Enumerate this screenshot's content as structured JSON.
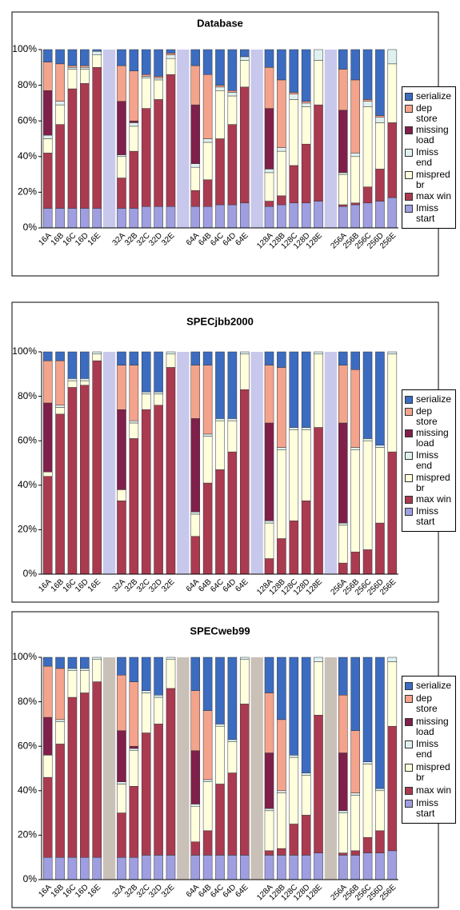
{
  "chart_data": [
    {
      "type": "bar",
      "stacked": true,
      "title": "Database",
      "gap_color": "#c8c8ec",
      "categories": [
        "16A",
        "16B",
        "16C",
        "16D",
        "16E",
        null,
        "32A",
        "32B",
        "32C",
        "32D",
        "32E",
        null,
        "64A",
        "64B",
        "64C",
        "64D",
        "64E",
        null,
        "128A",
        "128B",
        "128C",
        "128D",
        "128E",
        null,
        "256A",
        "256B",
        "256C",
        "256D",
        "256E"
      ],
      "ylim": [
        0,
        100
      ],
      "yticks": [
        {
          "value": 0,
          "label": "0%"
        },
        {
          "value": 20,
          "label": "20%"
        },
        {
          "value": 40,
          "label": "40%"
        },
        {
          "value": 60,
          "label": "60%"
        },
        {
          "value": 80,
          "label": "80%"
        },
        {
          "value": 100,
          "label": "100%"
        }
      ],
      "series": [
        {
          "name": "Imiss start",
          "color": "#9e9ee0",
          "values": [
            11,
            11,
            11,
            11,
            11,
            null,
            11,
            11,
            12,
            12,
            12,
            null,
            12,
            12,
            13,
            13,
            14,
            null,
            12,
            13,
            14,
            14,
            15,
            null,
            12,
            13,
            14,
            15,
            17
          ]
        },
        {
          "name": "max win",
          "color": "#aa3a50",
          "values": [
            31,
            47,
            67,
            70,
            79,
            null,
            17,
            32,
            55,
            60,
            74,
            null,
            9,
            15,
            37,
            45,
            65,
            null,
            3,
            5,
            21,
            33,
            54,
            null,
            1,
            1,
            9,
            18,
            42
          ]
        },
        {
          "name": "mispred br",
          "color": "#ffffdd",
          "values": [
            8,
            11,
            11,
            8,
            7,
            null,
            12,
            14,
            17,
            11,
            9,
            null,
            13,
            21,
            27,
            16,
            15,
            null,
            16,
            25,
            37,
            21,
            25,
            null,
            17,
            26,
            45,
            26,
            33
          ]
        },
        {
          "name": "Imiss end",
          "color": "#dff0f0",
          "values": [
            2,
            2,
            1,
            1,
            2,
            null,
            1,
            2,
            1,
            1,
            2,
            null,
            2,
            2,
            2,
            2,
            2,
            null,
            2,
            2,
            3,
            2,
            6,
            null,
            1,
            2,
            3,
            3,
            8
          ]
        },
        {
          "name": "missing load",
          "color": "#7f1f4a",
          "values": [
            25,
            0,
            0,
            0,
            0,
            null,
            30,
            1,
            0,
            0,
            0,
            null,
            33,
            0,
            0,
            0,
            0,
            null,
            34,
            0,
            0,
            0,
            0,
            null,
            35,
            0,
            0,
            0,
            0
          ]
        },
        {
          "name": "dep store",
          "color": "#f4a38c",
          "values": [
            16,
            21,
            1,
            1,
            0,
            null,
            20,
            28,
            1,
            1,
            1,
            null,
            22,
            36,
            1,
            1,
            0,
            null,
            23,
            38,
            1,
            1,
            0,
            null,
            23,
            41,
            1,
            1,
            0
          ]
        },
        {
          "name": "serialize",
          "color": "#3c6cc0",
          "values": [
            7,
            8,
            9,
            9,
            1,
            null,
            9,
            12,
            14,
            15,
            2,
            null,
            9,
            14,
            20,
            23,
            4,
            null,
            10,
            17,
            24,
            29,
            0,
            null,
            11,
            17,
            28,
            37,
            0
          ]
        }
      ]
    },
    {
      "type": "bar",
      "stacked": true,
      "title": "SPECjbb2000",
      "gap_color": "#c8c8ec",
      "categories": [
        "16A",
        "16B",
        "16C",
        "16D",
        "16E",
        null,
        "32A",
        "32B",
        "32C",
        "32D",
        "32E",
        null,
        "64A",
        "64B",
        "64C",
        "64D",
        "64E",
        null,
        "128A",
        "128B",
        "128C",
        "128D",
        "128E",
        null,
        "256A",
        "256B",
        "256C",
        "256D",
        "256E"
      ],
      "ylim": [
        0,
        100
      ],
      "yticks": [
        {
          "value": 0,
          "label": "0%"
        },
        {
          "value": 20,
          "label": "20%"
        },
        {
          "value": 40,
          "label": "40%"
        },
        {
          "value": 60,
          "label": "60%"
        },
        {
          "value": 80,
          "label": "80%"
        },
        {
          "value": 100,
          "label": "100%"
        }
      ],
      "series": [
        {
          "name": "Imiss start",
          "color": "#9e9ee0",
          "values": [
            0,
            0,
            0,
            0,
            0,
            null,
            0,
            0,
            0,
            0,
            0,
            null,
            0,
            0,
            0,
            0,
            0,
            null,
            0,
            0,
            0,
            0,
            0,
            null,
            0,
            0,
            0,
            0,
            0
          ]
        },
        {
          "name": "max win",
          "color": "#aa3a50",
          "values": [
            44,
            72,
            84,
            85,
            96,
            null,
            33,
            61,
            74,
            76,
            93,
            null,
            17,
            41,
            47,
            55,
            83,
            null,
            7,
            16,
            24,
            33,
            66,
            null,
            5,
            10,
            11,
            23,
            55
          ]
        },
        {
          "name": "mispred br",
          "color": "#ffffdd",
          "values": [
            2,
            3,
            3,
            2,
            3,
            null,
            5,
            7,
            7,
            5,
            6,
            null,
            10,
            21,
            22,
            14,
            16,
            null,
            16,
            40,
            41,
            32,
            33,
            null,
            17,
            46,
            49,
            34,
            44
          ]
        },
        {
          "name": "Imiss end",
          "color": "#dff0f0",
          "values": [
            0,
            1,
            1,
            1,
            1,
            null,
            0,
            1,
            1,
            1,
            1,
            null,
            1,
            1,
            1,
            1,
            1,
            null,
            1,
            1,
            1,
            1,
            1,
            null,
            1,
            1,
            1,
            1,
            1
          ]
        },
        {
          "name": "missing load",
          "color": "#7f1f4a",
          "values": [
            31,
            0,
            0,
            0,
            0,
            null,
            36,
            0,
            0,
            0,
            0,
            null,
            42,
            0,
            0,
            0,
            0,
            null,
            44,
            0,
            0,
            0,
            0,
            null,
            45,
            0,
            0,
            0,
            0
          ]
        },
        {
          "name": "dep store",
          "color": "#f4a38c",
          "values": [
            19,
            20,
            0,
            0,
            0,
            null,
            20,
            25,
            0,
            0,
            0,
            null,
            24,
            31,
            0,
            0,
            0,
            null,
            26,
            36,
            0,
            0,
            0,
            null,
            26,
            35,
            0,
            0,
            0
          ]
        },
        {
          "name": "serialize",
          "color": "#3c6cc0",
          "values": [
            4,
            4,
            12,
            12,
            0,
            null,
            6,
            6,
            18,
            18,
            0,
            null,
            6,
            6,
            30,
            30,
            0,
            null,
            6,
            7,
            34,
            34,
            0,
            null,
            6,
            8,
            39,
            42,
            0
          ]
        }
      ]
    },
    {
      "type": "bar",
      "stacked": true,
      "title": "SPECweb99",
      "gap_color": "#c9c1b8",
      "categories": [
        "16A",
        "16B",
        "16C",
        "16D",
        "16E",
        null,
        "32A",
        "32B",
        "32C",
        "32D",
        "32E",
        null,
        "64A",
        "64B",
        "64C",
        "64D",
        "64E",
        null,
        "128A",
        "128B",
        "128C",
        "128D",
        "128E",
        null,
        "256A",
        "256B",
        "256C",
        "256D",
        "256E"
      ],
      "ylim": [
        0,
        100
      ],
      "yticks": [
        {
          "value": 0,
          "label": "0%"
        },
        {
          "value": 20,
          "label": "20%"
        },
        {
          "value": 40,
          "label": "40%"
        },
        {
          "value": 60,
          "label": "60%"
        },
        {
          "value": 80,
          "label": "80%"
        },
        {
          "value": 100,
          "label": "100%"
        }
      ],
      "series": [
        {
          "name": "Imiss start",
          "color": "#9e9ee0",
          "values": [
            10,
            10,
            10,
            10,
            10,
            null,
            10,
            10,
            11,
            11,
            11,
            null,
            11,
            11,
            11,
            11,
            11,
            null,
            11,
            11,
            11,
            11,
            12,
            null,
            11,
            11,
            12,
            12,
            13
          ]
        },
        {
          "name": "max win",
          "color": "#aa3a50",
          "values": [
            36,
            51,
            72,
            74,
            79,
            null,
            20,
            32,
            55,
            59,
            75,
            null,
            6,
            11,
            32,
            37,
            68,
            null,
            2,
            3,
            14,
            18,
            62,
            null,
            1,
            2,
            7,
            10,
            56
          ]
        },
        {
          "name": "mispred br",
          "color": "#ffffdd",
          "values": [
            10,
            10,
            12,
            10,
            10,
            null,
            13,
            16,
            18,
            12,
            13,
            null,
            16,
            22,
            26,
            14,
            20,
            null,
            18,
            25,
            30,
            18,
            24,
            null,
            18,
            25,
            33,
            18,
            29
          ]
        },
        {
          "name": "Imiss end",
          "color": "#dff0f0",
          "values": [
            0,
            1,
            1,
            1,
            1,
            null,
            1,
            1,
            1,
            1,
            1,
            null,
            1,
            1,
            1,
            1,
            1,
            null,
            1,
            1,
            1,
            1,
            2,
            null,
            1,
            1,
            1,
            1,
            2
          ]
        },
        {
          "name": "missing load",
          "color": "#7f1f4a",
          "values": [
            17,
            0,
            0,
            0,
            0,
            null,
            23,
            1,
            0,
            0,
            0,
            null,
            24,
            0,
            0,
            0,
            0,
            null,
            25,
            0,
            0,
            0,
            0,
            null,
            26,
            0,
            0,
            0,
            0
          ]
        },
        {
          "name": "dep store",
          "color": "#f4a38c",
          "values": [
            23,
            23,
            0,
            0,
            0,
            null,
            25,
            29,
            0,
            0,
            0,
            null,
            27,
            31,
            0,
            0,
            0,
            null,
            27,
            32,
            0,
            0,
            0,
            null,
            26,
            28,
            0,
            0,
            0
          ]
        },
        {
          "name": "serialize",
          "color": "#3c6cc0",
          "values": [
            4,
            5,
            5,
            5,
            0,
            null,
            8,
            11,
            15,
            17,
            0,
            null,
            15,
            24,
            30,
            37,
            0,
            null,
            16,
            28,
            44,
            52,
            0,
            null,
            17,
            33,
            47,
            59,
            0
          ]
        }
      ]
    }
  ]
}
